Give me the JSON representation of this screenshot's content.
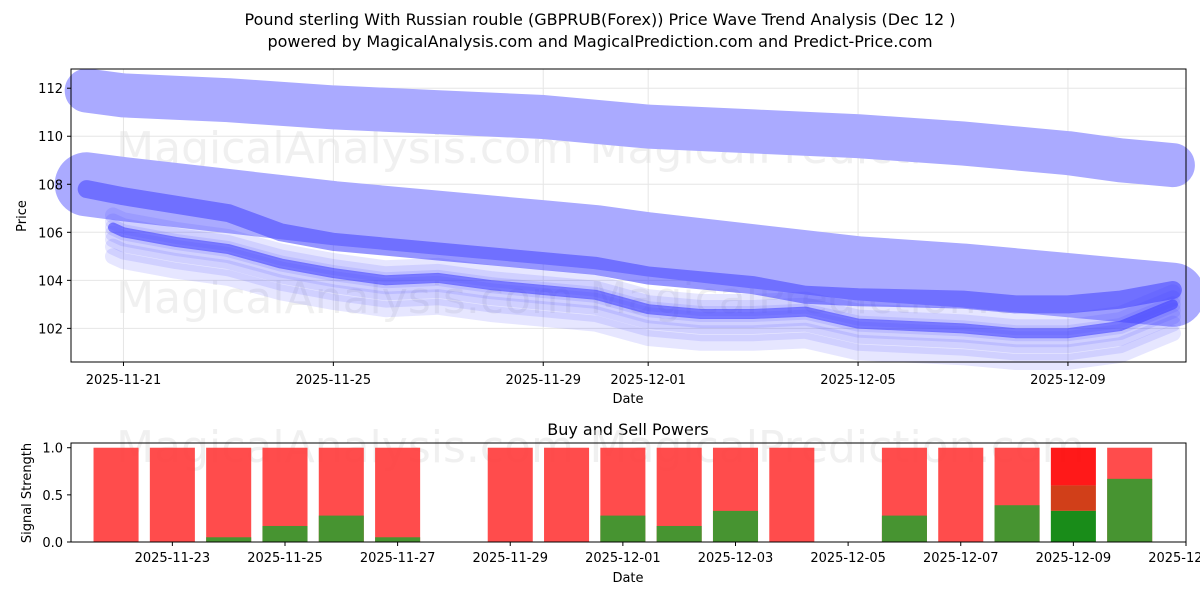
{
  "title_line1": "Pound sterling With Russian rouble (GBPRUB(Forex)) Price Wave Trend Analysis (Dec 12 )",
  "title_line2": "powered by MagicalAnalysis.com and MagicalPrediction.com and Predict-Price.com",
  "watermark": {
    "left": "MagicalAnalysis.com",
    "right": "MagicalPrediction.com"
  },
  "colors": {
    "wave": "#4040ff",
    "wave_light": "#aaaaff",
    "buy": "#2e9e2e",
    "sell": "#ff3333",
    "buy_strong": "#008000",
    "sell_strong": "#ff0000"
  },
  "chart_data": [
    {
      "type": "line",
      "title": "",
      "xlabel": "Date",
      "ylabel": "Price",
      "grid": true,
      "ylim": [
        100.6,
        112.8
      ],
      "xlim_days": [
        -1.0,
        20.25
      ],
      "x_origin": "2025-11-21",
      "x_tick_labels": [
        "2025-11-21",
        "2025-11-25",
        "2025-11-29",
        "2025-12-01",
        "2025-12-05",
        "2025-12-09"
      ],
      "x_tick_days": [
        0,
        4,
        8,
        10,
        14,
        18
      ],
      "y_ticks": [
        102,
        104,
        106,
        108,
        110,
        112
      ],
      "series": [
        {
          "name": "upper band",
          "days": [
            -0.7,
            0,
            2,
            4,
            6,
            8,
            9,
            10,
            12,
            14,
            16,
            18,
            19,
            20
          ],
          "values": [
            111.9,
            111.7,
            111.5,
            111.2,
            111.0,
            110.8,
            110.6,
            110.4,
            110.2,
            110.0,
            109.7,
            109.3,
            109.0,
            108.8
          ]
        },
        {
          "name": "middle band",
          "days": [
            -0.7,
            0,
            2,
            4,
            6,
            8,
            9,
            10,
            12,
            14,
            16,
            18,
            19,
            20
          ],
          "values": [
            108.0,
            107.8,
            107.3,
            106.8,
            106.4,
            106.0,
            105.8,
            105.5,
            105.0,
            104.5,
            104.2,
            103.8,
            103.6,
            103.4
          ]
        },
        {
          "name": "trend",
          "days": [
            -0.7,
            0,
            2,
            3,
            4,
            6,
            8,
            9,
            10,
            12,
            13,
            14,
            16,
            17,
            18,
            19,
            20
          ],
          "values": [
            107.8,
            107.5,
            106.8,
            106.0,
            105.6,
            105.2,
            104.8,
            104.6,
            104.2,
            103.8,
            103.4,
            103.3,
            103.2,
            103.0,
            103.0,
            103.2,
            103.6
          ]
        },
        {
          "name": "price wave",
          "days": [
            -0.2,
            0,
            1,
            2,
            3,
            4,
            5,
            6,
            7,
            8,
            9,
            10,
            11,
            12,
            13,
            14,
            15,
            16,
            17,
            18,
            19,
            20
          ],
          "values": [
            106.2,
            106.0,
            105.6,
            105.3,
            104.7,
            104.3,
            104.0,
            104.1,
            103.8,
            103.6,
            103.4,
            102.8,
            102.6,
            102.6,
            102.7,
            102.2,
            102.1,
            102.0,
            101.8,
            101.8,
            102.1,
            103.0
          ]
        }
      ]
    },
    {
      "type": "bar",
      "title": "Buy and Sell Powers",
      "xlabel": "Date",
      "ylabel": "Signal Strength",
      "ylim": [
        0,
        1.05
      ],
      "y_ticks": [
        0.0,
        0.5,
        1.0
      ],
      "y_tick_labels": [
        "0.0",
        "0.5",
        "1.0"
      ],
      "xlim_days": [
        -0.8,
        19.0
      ],
      "x_origin": "2025-11-22",
      "x_tick_labels": [
        "2025-11-23",
        "2025-11-25",
        "2025-11-27",
        "2025-11-29",
        "2025-12-01",
        "2025-12-03",
        "2025-12-05",
        "2025-12-07",
        "2025-12-09",
        "2025-12-11"
      ],
      "x_tick_days": [
        1,
        3,
        5,
        7,
        9,
        11,
        13,
        15,
        17,
        19
      ],
      "bar_days": [
        0,
        1,
        2,
        3,
        4,
        5,
        7,
        8,
        9,
        10,
        11,
        12,
        14,
        15,
        16,
        17,
        18
      ],
      "buy": [
        0.0,
        0.0,
        0.05,
        0.17,
        0.28,
        0.05,
        0.0,
        0.0,
        0.28,
        0.17,
        0.33,
        0.0,
        0.28,
        0.0,
        0.39,
        0.33,
        0.67
      ],
      "sell": [
        1.0,
        1.0,
        1.0,
        1.0,
        1.0,
        1.0,
        1.0,
        1.0,
        1.0,
        1.0,
        1.0,
        1.0,
        1.0,
        1.0,
        1.0,
        1.0,
        1.0
      ],
      "highlight_bar_day": 17,
      "highlight_mid": 0.6
    }
  ]
}
